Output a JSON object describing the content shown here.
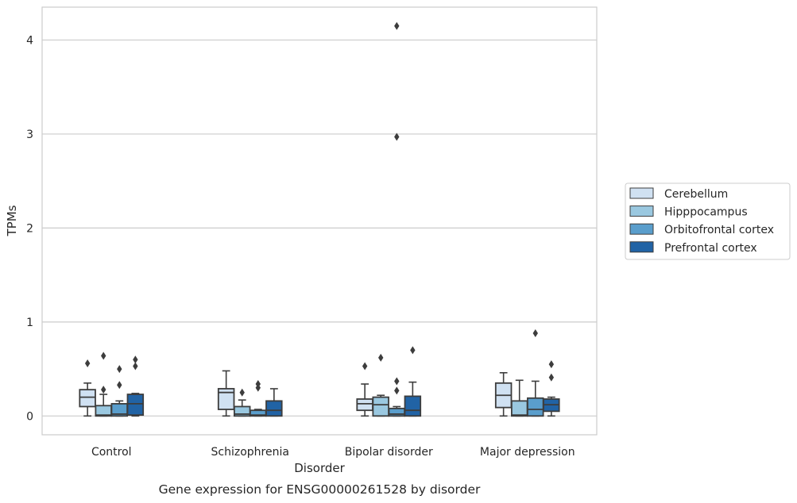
{
  "chart_data": {
    "type": "box",
    "caption": "Gene expression for ENSG00000261528 by disorder",
    "xlabel": "Disorder",
    "ylabel": "TPMs",
    "ylim": [
      -0.2,
      4.35
    ],
    "yticks": [
      0,
      1,
      2,
      3,
      4
    ],
    "grid": "horizontal",
    "legend_position": "right",
    "categories": [
      "Control",
      "Schizophrenia",
      "Bipolar disorder",
      "Major depression"
    ],
    "series": [
      {
        "name": "Cerebellum",
        "color": "#d0e1f2",
        "boxes": [
          {
            "whislo": 0.0,
            "q1": 0.1,
            "med": 0.2,
            "q3": 0.28,
            "whishi": 0.35,
            "fliers": [
              0.56
            ]
          },
          {
            "whislo": 0.0,
            "q1": 0.07,
            "med": 0.25,
            "q3": 0.29,
            "whishi": 0.48,
            "fliers": []
          },
          {
            "whislo": 0.0,
            "q1": 0.06,
            "med": 0.13,
            "q3": 0.18,
            "whishi": 0.34,
            "fliers": [
              0.53
            ]
          },
          {
            "whislo": 0.0,
            "q1": 0.09,
            "med": 0.22,
            "q3": 0.35,
            "whishi": 0.46,
            "fliers": []
          }
        ]
      },
      {
        "name": "Hipppocampus",
        "color": "#9ac8e0",
        "boxes": [
          {
            "whislo": 0.0,
            "q1": 0.0,
            "med": 0.01,
            "q3": 0.11,
            "whishi": 0.23,
            "fliers": [
              0.28,
              0.64
            ]
          },
          {
            "whislo": 0.0,
            "q1": 0.0,
            "med": 0.02,
            "q3": 0.1,
            "whishi": 0.17,
            "fliers": [
              0.25
            ]
          },
          {
            "whislo": 0.0,
            "q1": 0.0,
            "med": 0.12,
            "q3": 0.2,
            "whishi": 0.22,
            "fliers": [
              0.62
            ]
          },
          {
            "whislo": 0.0,
            "q1": 0.0,
            "med": 0.01,
            "q3": 0.16,
            "whishi": 0.38,
            "fliers": []
          }
        ]
      },
      {
        "name": "Orbitofrontal cortex",
        "color": "#5a9ecc",
        "boxes": [
          {
            "whislo": 0.0,
            "q1": 0.0,
            "med": 0.02,
            "q3": 0.13,
            "whishi": 0.16,
            "fliers": [
              0.33,
              0.5
            ]
          },
          {
            "whislo": 0.0,
            "q1": 0.0,
            "med": 0.01,
            "q3": 0.06,
            "whishi": 0.07,
            "fliers": [
              0.3,
              0.34
            ]
          },
          {
            "whislo": 0.0,
            "q1": 0.0,
            "med": 0.02,
            "q3": 0.08,
            "whishi": 0.1,
            "fliers": [
              0.27,
              0.37,
              2.97,
              4.15
            ]
          },
          {
            "whislo": 0.0,
            "q1": 0.0,
            "med": 0.07,
            "q3": 0.19,
            "whishi": 0.37,
            "fliers": [
              0.88
            ]
          }
        ]
      },
      {
        "name": "Prefrontal cortex",
        "color": "#2163a5",
        "boxes": [
          {
            "whislo": 0.0,
            "q1": 0.01,
            "med": 0.13,
            "q3": 0.23,
            "whishi": 0.24,
            "fliers": [
              0.53,
              0.6
            ]
          },
          {
            "whislo": 0.0,
            "q1": 0.0,
            "med": 0.06,
            "q3": 0.16,
            "whishi": 0.29,
            "fliers": []
          },
          {
            "whislo": 0.0,
            "q1": 0.0,
            "med": 0.06,
            "q3": 0.21,
            "whishi": 0.36,
            "fliers": [
              0.7
            ]
          },
          {
            "whislo": 0.0,
            "q1": 0.05,
            "med": 0.12,
            "q3": 0.18,
            "whishi": 0.2,
            "fliers": [
              0.41,
              0.55
            ]
          }
        ]
      }
    ]
  }
}
